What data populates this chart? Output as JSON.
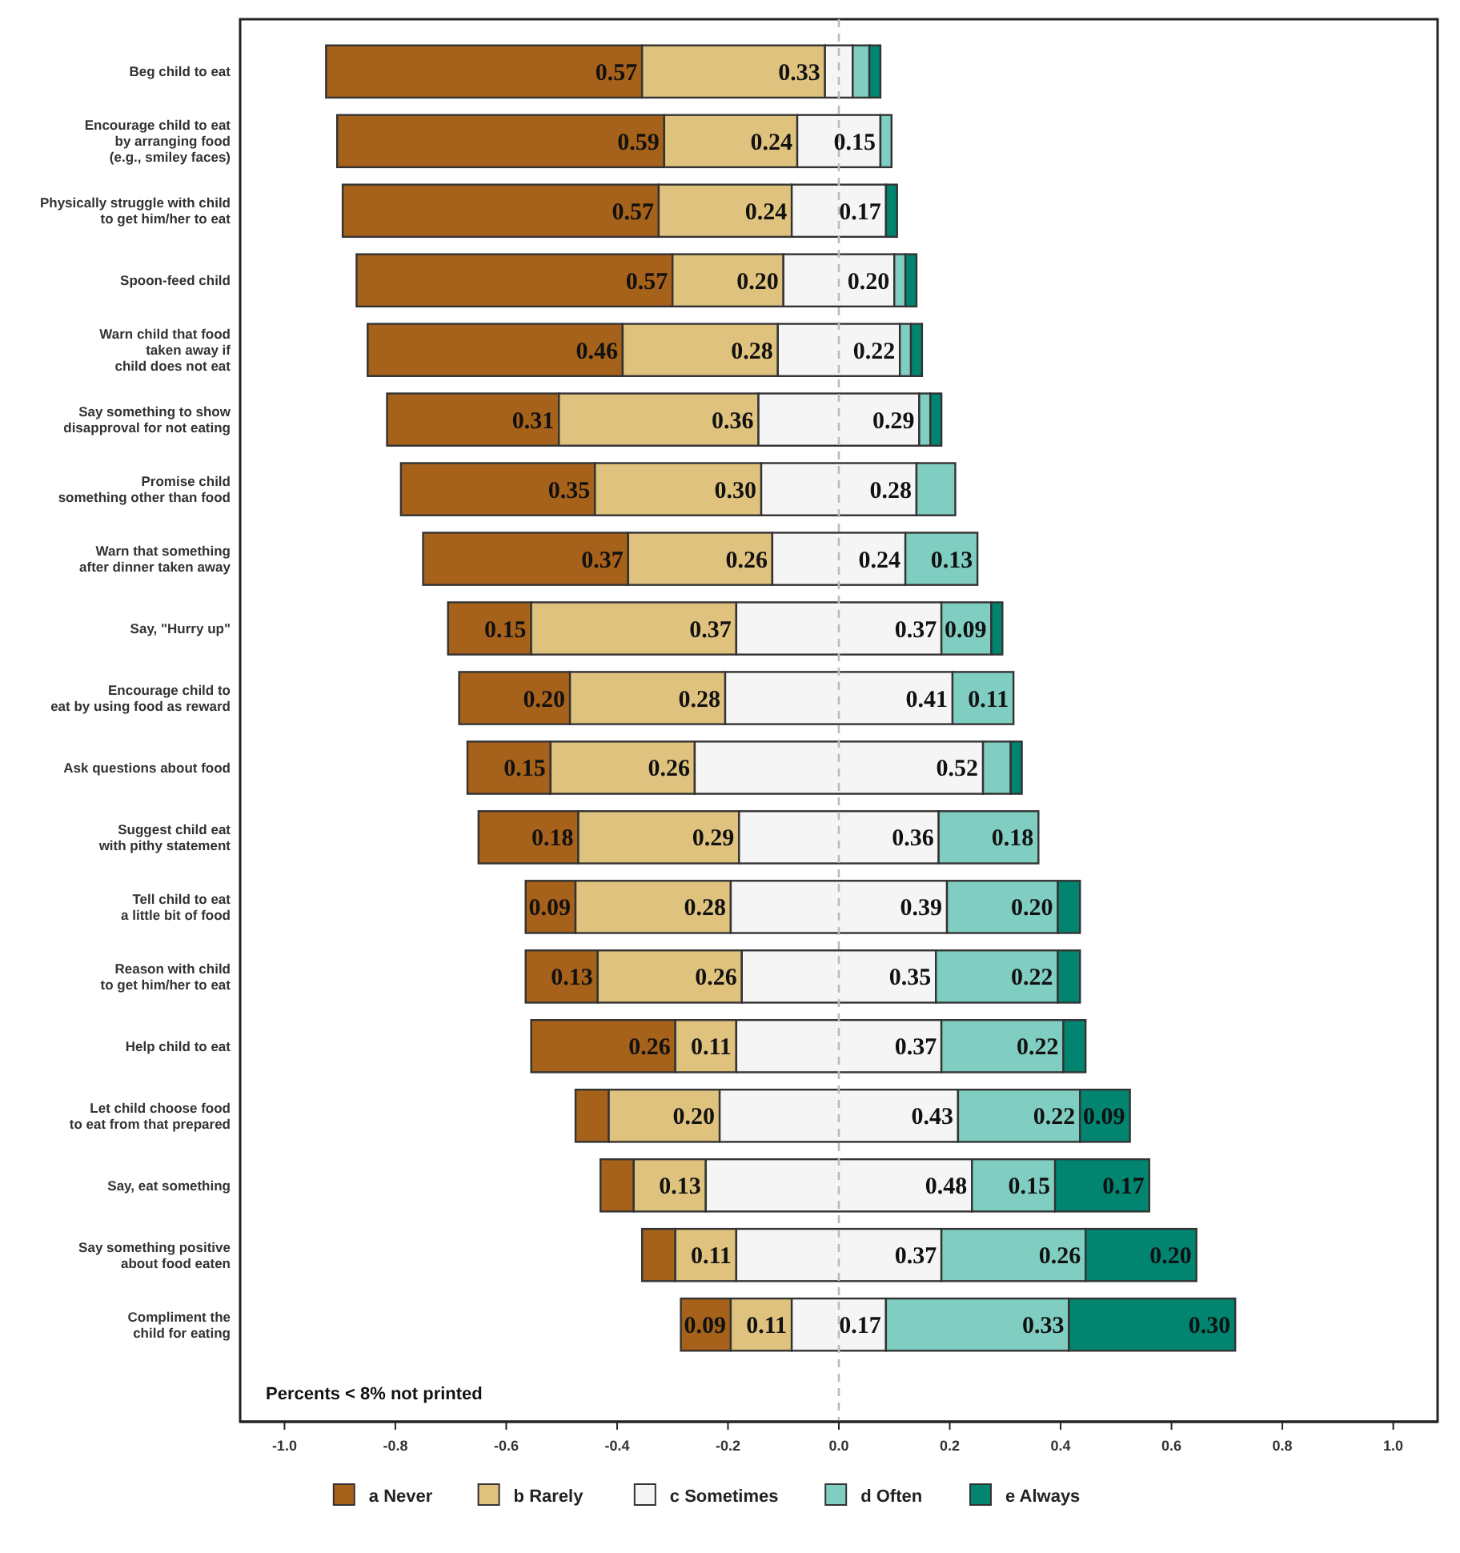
{
  "chart_data": {
    "type": "bar",
    "orientation": "horizontal",
    "categories": [
      "Beg child to eat",
      "Encourage child to eat\nby arranging food\n(e.g., smiley faces)",
      "Physically struggle with child\nto get him/her to eat",
      "Spoon-feed child",
      "Warn child that food\ntaken away if\nchild does not eat",
      "Say something to show\ndisapproval for not eating",
      "Promise child\nsomething other than food",
      "Warn that something\nafter dinner taken away",
      "Say, \"Hurry up\"",
      "Encourage child to\neat by using food as reward",
      "Ask questions about food",
      "Suggest child eat\nwith pithy statement",
      "Tell child to eat\na little bit of food",
      "Reason with child\nto get him/her to eat",
      "Help child to eat",
      "Let child choose food\nto eat from that prepared",
      "Say, eat something",
      "Say something positive\nabout food eaten",
      "Compliment the\nchild for eating"
    ],
    "series": [
      {
        "name": "a Never",
        "color": "#a6611a",
        "base": [
          -0.925,
          -0.905,
          -0.895,
          -0.87,
          -0.85,
          -0.815,
          -0.79,
          -0.75,
          -0.705,
          -0.685,
          -0.67,
          -0.65,
          -0.565,
          -0.565,
          -0.555,
          -0.475,
          -0.43,
          -0.355,
          -0.285
        ],
        "values": [
          0.57,
          0.59,
          0.57,
          0.57,
          0.46,
          0.31,
          0.35,
          0.37,
          0.15,
          0.2,
          0.15,
          0.18,
          0.09,
          0.13,
          0.26,
          0.06,
          0.06,
          0.06,
          0.09
        ],
        "value_labels": [
          "0.57",
          "0.59",
          "0.57",
          "0.57",
          "0.46",
          "0.31",
          "0.35",
          "0.37",
          "0.15",
          "0.20",
          "0.15",
          "0.18",
          "0.09",
          "0.13",
          "0.26",
          null,
          null,
          null,
          "0.09"
        ]
      },
      {
        "name": "b Rarely",
        "color": "#dfc27d",
        "base": [
          -0.355,
          -0.315,
          -0.325,
          -0.3,
          -0.39,
          -0.505,
          -0.44,
          -0.38,
          -0.555,
          -0.485,
          -0.52,
          -0.47,
          -0.475,
          -0.435,
          -0.295,
          -0.415,
          -0.37,
          -0.295,
          -0.195
        ],
        "values": [
          0.33,
          0.24,
          0.24,
          0.2,
          0.28,
          0.36,
          0.3,
          0.26,
          0.37,
          0.28,
          0.26,
          0.29,
          0.28,
          0.26,
          0.11,
          0.2,
          0.13,
          0.11,
          0.11
        ],
        "value_labels": [
          "0.33",
          "0.24",
          "0.24",
          "0.20",
          "0.28",
          "0.36",
          "0.30",
          "0.26",
          "0.37",
          "0.28",
          "0.26",
          "0.29",
          "0.28",
          "0.26",
          "0.11",
          "0.20",
          "0.13",
          "0.11",
          "0.11"
        ]
      },
      {
        "name": "c Sometimes",
        "color": "#f5f5f5",
        "base": [
          -0.025,
          -0.075,
          -0.085,
          -0.1,
          -0.11,
          -0.145,
          -0.14,
          -0.12,
          -0.185,
          -0.205,
          -0.26,
          -0.18,
          -0.195,
          -0.175,
          -0.185,
          -0.215,
          -0.24,
          -0.185,
          -0.085
        ],
        "values": [
          0.05,
          0.15,
          0.17,
          0.2,
          0.22,
          0.29,
          0.28,
          0.24,
          0.37,
          0.41,
          0.52,
          0.36,
          0.39,
          0.35,
          0.37,
          0.43,
          0.48,
          0.37,
          0.17
        ],
        "value_labels": [
          null,
          "0.15",
          "0.17",
          "0.20",
          "0.22",
          "0.29",
          "0.28",
          "0.24",
          "0.37",
          "0.41",
          "0.52",
          "0.36",
          "0.39",
          "0.35",
          "0.37",
          "0.43",
          "0.48",
          "0.37",
          "0.17"
        ]
      },
      {
        "name": "d Often",
        "color": "#80cdc1",
        "base": [
          0.025,
          0.075,
          null,
          0.1,
          0.11,
          0.145,
          0.14,
          0.12,
          0.185,
          0.205,
          0.26,
          0.18,
          0.195,
          0.175,
          0.185,
          0.215,
          0.24,
          0.185,
          0.085
        ],
        "values": [
          0.03,
          0.02,
          null,
          0.02,
          0.02,
          0.02,
          0.07,
          0.13,
          0.09,
          0.11,
          0.05,
          0.18,
          0.2,
          0.22,
          0.22,
          0.22,
          0.15,
          0.26,
          0.33
        ],
        "value_labels": [
          null,
          null,
          null,
          null,
          null,
          null,
          null,
          "0.13",
          "0.09",
          "0.11",
          null,
          "0.18",
          "0.20",
          "0.22",
          "0.22",
          "0.22",
          "0.15",
          "0.26",
          "0.33"
        ]
      },
      {
        "name": "e Always",
        "color": "#018571",
        "base": [
          0.055,
          null,
          0.085,
          0.12,
          0.13,
          0.165,
          null,
          null,
          0.275,
          null,
          0.31,
          null,
          0.395,
          0.395,
          0.405,
          0.435,
          0.39,
          0.445,
          0.415
        ],
        "values": [
          0.02,
          null,
          0.02,
          0.02,
          0.02,
          0.02,
          null,
          null,
          0.02,
          null,
          0.02,
          null,
          0.04,
          0.04,
          0.04,
          0.09,
          0.17,
          0.2,
          0.3
        ],
        "value_labels": [
          null,
          null,
          null,
          null,
          null,
          null,
          null,
          null,
          null,
          null,
          null,
          null,
          null,
          null,
          null,
          "0.09",
          "0.17",
          "0.20",
          "0.30"
        ]
      }
    ],
    "xlim": [
      -1.08,
      1.08
    ],
    "xticks": [
      {
        "value": -1,
        "label": "-1.0"
      },
      {
        "value": -0.8,
        "label": "-0.8"
      },
      {
        "value": -0.6,
        "label": "-0.6"
      },
      {
        "value": -0.4,
        "label": "-0.4"
      },
      {
        "value": -0.2,
        "label": "-0.2"
      },
      {
        "value": 0,
        "label": "0.0"
      },
      {
        "value": 0.2,
        "label": "0.2"
      },
      {
        "value": 0.4,
        "label": "0.4"
      },
      {
        "value": 0.6,
        "label": "0.6"
      },
      {
        "value": 0.8,
        "label": "0.8"
      },
      {
        "value": 1,
        "label": "1.0"
      }
    ],
    "ref_lines": [
      {
        "axis": "x",
        "value": 0,
        "color": "#bbbbbb",
        "line_style": "dashed"
      }
    ],
    "annotations": [
      "Percents < 8% not printed"
    ],
    "grid": false,
    "legend": "bottom"
  }
}
